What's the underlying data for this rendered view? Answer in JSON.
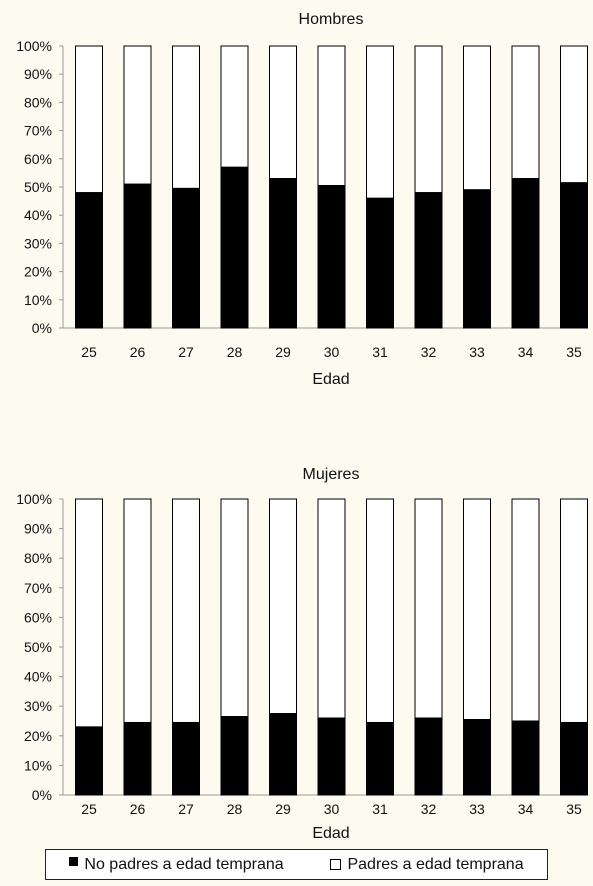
{
  "colors": {
    "filled": "#000000",
    "hollow": "#ffffff",
    "axis": "#999999",
    "background": "#fdfbf0"
  },
  "legend": {
    "items": [
      {
        "label": "No padres a edad temprana",
        "swatch": "filled"
      },
      {
        "label": "Padres a edad temprana",
        "swatch": "hollow"
      }
    ]
  },
  "chart_data": [
    {
      "type": "bar",
      "stacked": true,
      "title": "Hombres",
      "xlabel": "Edad",
      "ylabel": "",
      "ylim": [
        0,
        100
      ],
      "yticks": [
        "0%",
        "10%",
        "20%",
        "30%",
        "40%",
        "50%",
        "60%",
        "70%",
        "80%",
        "90%",
        "100%"
      ],
      "categories": [
        "25",
        "26",
        "27",
        "28",
        "29",
        "30",
        "31",
        "32",
        "33",
        "34",
        "35"
      ],
      "series": [
        {
          "name": "No padres a edad temprana",
          "values": [
            48,
            51,
            49.5,
            57,
            53,
            50.5,
            46,
            48,
            49,
            53,
            51.5
          ]
        },
        {
          "name": "Padres a edad temprana",
          "values": [
            52,
            49,
            50.5,
            43,
            47,
            49.5,
            54,
            52,
            51,
            47,
            48.5
          ]
        }
      ],
      "grid": false,
      "legend": "bottom"
    },
    {
      "type": "bar",
      "stacked": true,
      "title": "Mujeres",
      "xlabel": "Edad",
      "ylabel": "",
      "ylim": [
        0,
        100
      ],
      "yticks": [
        "0%",
        "10%",
        "20%",
        "30%",
        "40%",
        "50%",
        "60%",
        "70%",
        "80%",
        "90%",
        "100%"
      ],
      "categories": [
        "25",
        "26",
        "27",
        "28",
        "29",
        "30",
        "31",
        "32",
        "33",
        "34",
        "35"
      ],
      "series": [
        {
          "name": "No padres a edad temprana",
          "values": [
            23,
            24.5,
            24.5,
            26.5,
            27.5,
            26,
            24.5,
            26,
            25.5,
            25,
            24.5
          ]
        },
        {
          "name": "Padres a edad temprana",
          "values": [
            77,
            75.5,
            75.5,
            73.5,
            72.5,
            74,
            75.5,
            74,
            74.5,
            75,
            75.5
          ]
        }
      ],
      "grid": false,
      "legend": "bottom"
    }
  ]
}
